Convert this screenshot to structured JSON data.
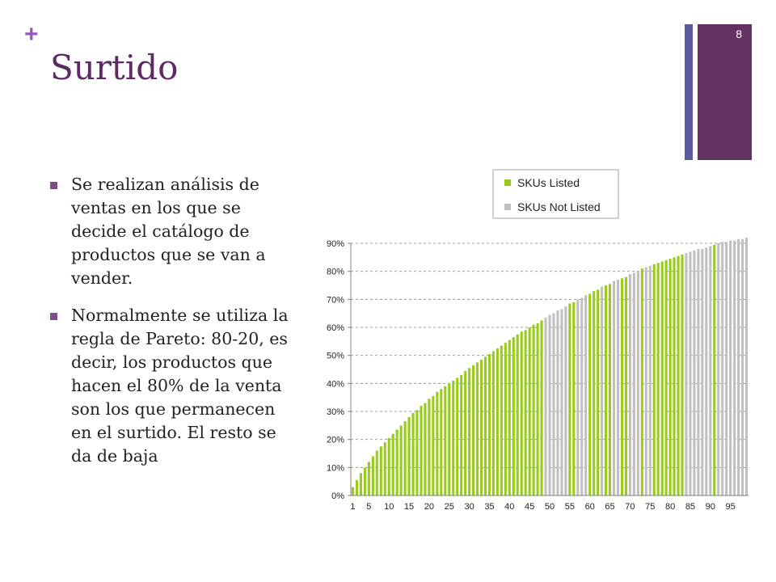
{
  "slide": {
    "plus_symbol": "+",
    "title": "Surtido",
    "slide_number": "8",
    "bullets": [
      "Se realizan análisis de ventas en los que se decide el catálogo de productos que se van a vender.",
      "Normalmente se utiliza la regla de Pareto: 80-20, es decir, los productos que hacen el 80% de la venta son los que permanecen en el surtido. El resto se da de baja"
    ],
    "colors": {
      "accent_purple": "#643263",
      "accent_blue": "#5b5a9e",
      "title": "#5e2a63",
      "listed": "#99cc1a",
      "not_listed": "#c0c0c0"
    }
  },
  "chart_data": {
    "type": "bar",
    "title": "",
    "xlabel": "",
    "ylabel": "",
    "ylim": [
      0,
      90
    ],
    "y_ticks": [
      "0%",
      "10%",
      "20%",
      "30%",
      "40%",
      "50%",
      "60%",
      "70%",
      "80%",
      "90%"
    ],
    "x_tick_labels": [
      "1",
      "5",
      "10",
      "15",
      "20",
      "25",
      "30",
      "35",
      "40",
      "45",
      "50",
      "55",
      "60",
      "65",
      "70",
      "75",
      "80",
      "85",
      "90",
      "95"
    ],
    "x_tick_positions": [
      1,
      5,
      10,
      15,
      20,
      25,
      30,
      35,
      40,
      45,
      50,
      55,
      60,
      65,
      70,
      75,
      80,
      85,
      90,
      95
    ],
    "grid": "horizontal dashed",
    "legend_position": "top-right",
    "series": [
      {
        "name": "SKUs Listed",
        "color": "#99cc1a"
      },
      {
        "name": "SKUs Not Listed",
        "color": "#c0c0c0"
      }
    ],
    "categories_count": 99,
    "values": [
      3,
      5.5,
      8,
      10,
      12,
      14,
      16,
      17.5,
      19,
      20.5,
      22,
      23.5,
      25,
      26.5,
      28,
      29.5,
      30.5,
      32,
      33,
      34.5,
      35.5,
      37,
      38,
      39,
      40,
      41,
      42,
      43,
      44.5,
      45.5,
      46.5,
      47.5,
      48.5,
      49.5,
      50.5,
      51.5,
      52.5,
      53.5,
      54.5,
      55.5,
      56.5,
      57.5,
      58.5,
      59,
      60,
      61,
      61.5,
      62.5,
      63.5,
      64.5,
      65,
      66,
      66.5,
      67.5,
      68.5,
      69,
      70,
      70.5,
      71.5,
      72,
      73,
      73.5,
      74.5,
      75,
      75.5,
      76.5,
      77,
      77.5,
      78,
      79,
      79.5,
      80,
      81,
      81.5,
      82,
      82.5,
      83,
      83.5,
      84,
      84.5,
      85,
      85.5,
      86,
      86.5,
      87,
      87.5,
      88,
      88,
      88.5,
      89,
      89.5,
      90,
      90.5,
      90.5,
      91,
      91,
      91.5,
      91.5,
      92
    ],
    "listed_flags": [
      1,
      1,
      1,
      1,
      1,
      1,
      1,
      1,
      1,
      1,
      1,
      1,
      1,
      1,
      1,
      1,
      1,
      1,
      1,
      1,
      1,
      1,
      1,
      1,
      1,
      1,
      1,
      1,
      1,
      1,
      1,
      1,
      1,
      1,
      1,
      1,
      1,
      1,
      1,
      1,
      1,
      1,
      1,
      1,
      1,
      1,
      1,
      1,
      0,
      0,
      0,
      0,
      0,
      0,
      1,
      1,
      0,
      0,
      0,
      1,
      1,
      1,
      0,
      1,
      1,
      0,
      0,
      1,
      1,
      0,
      0,
      0,
      1,
      0,
      0,
      1,
      1,
      1,
      1,
      1,
      1,
      1,
      1,
      0,
      0,
      0,
      0,
      0,
      0,
      0,
      1,
      0,
      0,
      0,
      0,
      0,
      0,
      0,
      0
    ]
  }
}
